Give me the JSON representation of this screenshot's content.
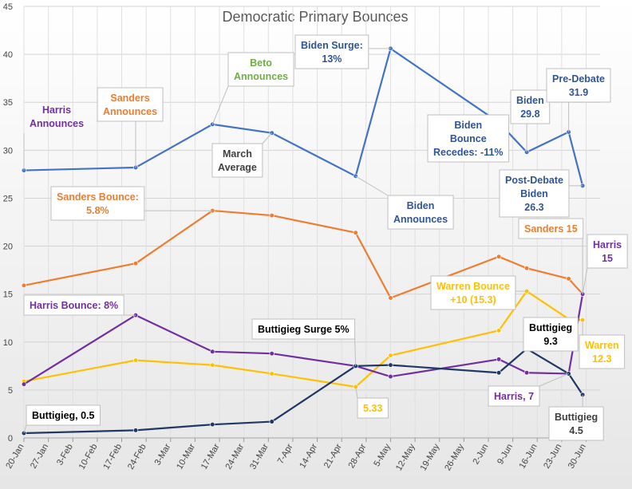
{
  "chart_data": {
    "type": "line",
    "title": "Democratic Primary Bounces",
    "xlabel": "",
    "ylabel": "",
    "ylim": [
      0,
      45
    ],
    "yticks": [
      0,
      5,
      10,
      15,
      20,
      25,
      30,
      35,
      40,
      45
    ],
    "grid": true,
    "x_ticks": [
      "20-Jan",
      "27-Jan",
      "3-Feb",
      "10-Feb",
      "17-Feb",
      "24-Feb",
      "3-Mar",
      "10-Mar",
      "17-Mar",
      "24-Mar",
      "31-Mar",
      "7-Apr",
      "14-Apr",
      "21-Apr",
      "28-Apr",
      "5-May",
      "12-May",
      "19-May",
      "26-May",
      "2-Jun",
      "9-Jun",
      "16-Jun",
      "23-Jun",
      "30-Jun"
    ],
    "series": [
      {
        "name": "Biden",
        "color": "#4472C4",
        "points": [
          {
            "x": "20-Jan",
            "y": 27.9
          },
          {
            "x": "21-Feb",
            "y": 28.2
          },
          {
            "x": "15-Mar",
            "y": 32.7
          },
          {
            "x": "1-Apr",
            "y": 31.8
          },
          {
            "x": "25-Apr",
            "y": 27.3
          },
          {
            "x": "5-May",
            "y": 40.6
          },
          {
            "x": "5-Jun",
            "y": 32.9
          },
          {
            "x": "13-Jun",
            "y": 29.8
          },
          {
            "x": "25-Jun",
            "y": 31.9
          },
          {
            "x": "29-Jun",
            "y": 26.3
          }
        ]
      },
      {
        "name": "Sanders",
        "color": "#ED7D31",
        "points": [
          {
            "x": "20-Jan",
            "y": 15.9
          },
          {
            "x": "21-Feb",
            "y": 18.2
          },
          {
            "x": "15-Mar",
            "y": 23.7
          },
          {
            "x": "1-Apr",
            "y": 23.2
          },
          {
            "x": "25-Apr",
            "y": 21.4
          },
          {
            "x": "5-May",
            "y": 14.6
          },
          {
            "x": "5-Jun",
            "y": 18.9
          },
          {
            "x": "13-Jun",
            "y": 17.7
          },
          {
            "x": "25-Jun",
            "y": 16.6
          },
          {
            "x": "29-Jun",
            "y": 15
          }
        ]
      },
      {
        "name": "Warren",
        "color": "#FFC000",
        "points": [
          {
            "x": "20-Jan",
            "y": 5.9
          },
          {
            "x": "21-Feb",
            "y": 8.1
          },
          {
            "x": "15-Mar",
            "y": 7.6
          },
          {
            "x": "1-Apr",
            "y": 6.7
          },
          {
            "x": "25-Apr",
            "y": 5.33
          },
          {
            "x": "5-May",
            "y": 8.6
          },
          {
            "x": "5-Jun",
            "y": 11.2
          },
          {
            "x": "13-Jun",
            "y": 15.3
          },
          {
            "x": "25-Jun",
            "y": 12.4
          },
          {
            "x": "29-Jun",
            "y": 12.3
          }
        ]
      },
      {
        "name": "Harris",
        "color": "#7030A0",
        "points": [
          {
            "x": "20-Jan",
            "y": 5.6
          },
          {
            "x": "21-Feb",
            "y": 12.8
          },
          {
            "x": "15-Mar",
            "y": 9.0
          },
          {
            "x": "1-Apr",
            "y": 8.8
          },
          {
            "x": "25-Apr",
            "y": 7.5
          },
          {
            "x": "5-May",
            "y": 6.4
          },
          {
            "x": "5-Jun",
            "y": 8.2
          },
          {
            "x": "13-Jun",
            "y": 6.8
          },
          {
            "x": "25-Jun",
            "y": 6.7
          },
          {
            "x": "29-Jun",
            "y": 15
          }
        ]
      },
      {
        "name": "Buttigieg",
        "color": "#1F3864",
        "points": [
          {
            "x": "20-Jan",
            "y": 0.5
          },
          {
            "x": "21-Feb",
            "y": 0.8
          },
          {
            "x": "15-Mar",
            "y": 1.4
          },
          {
            "x": "1-Apr",
            "y": 1.7
          },
          {
            "x": "25-Apr",
            "y": 7.5
          },
          {
            "x": "5-May",
            "y": 7.6
          },
          {
            "x": "5-Jun",
            "y": 6.8
          },
          {
            "x": "13-Jun",
            "y": 9.3
          },
          {
            "x": "25-Jun",
            "y": 6.7
          },
          {
            "x": "29-Jun",
            "y": 4.5
          }
        ]
      }
    ],
    "annotations": [
      {
        "lines": [
          "Harris",
          "Announces"
        ],
        "color": "#7030A0",
        "box": false,
        "anchor": {
          "s": 0,
          "i": 0
        }
      },
      {
        "lines": [
          "Sanders",
          "Announces"
        ],
        "color": "#ED7D31",
        "box": true,
        "anchor": {
          "s": 0,
          "i": 1
        }
      },
      {
        "lines": [
          "Beto",
          "Announces"
        ],
        "color": "#70AD47",
        "box": true,
        "anchor": {
          "s": 0,
          "i": 2
        }
      },
      {
        "lines": [
          "March",
          "Average"
        ],
        "color": "#404040",
        "box": true,
        "anchor": {
          "s": 0,
          "i": 3
        }
      },
      {
        "lines": [
          "Biden Surge:",
          "13%"
        ],
        "color": "#2F5597",
        "box": true,
        "anchor": {
          "s": 0,
          "i": 5
        }
      },
      {
        "lines": [
          "Biden",
          "Announces"
        ],
        "color": "#2F5597",
        "box": true,
        "anchor": {
          "s": 0,
          "i": 4
        }
      },
      {
        "lines": [
          "Biden",
          "Bounce",
          "Recedes: -11%"
        ],
        "color": "#2F5597",
        "box": true,
        "anchor": {
          "s": 0,
          "i": 6
        }
      },
      {
        "lines": [
          "Biden",
          "29.8"
        ],
        "color": "#2F5597",
        "box": true,
        "anchor": {
          "s": 0,
          "i": 7
        }
      },
      {
        "lines": [
          "Pre-Debate",
          "31.9"
        ],
        "color": "#2F5597",
        "box": true,
        "anchor": {
          "s": 0,
          "i": 8
        }
      },
      {
        "lines": [
          "Post-Debate",
          "Biden",
          "26.3"
        ],
        "color": "#2F5597",
        "box": true,
        "anchor": {
          "s": 0,
          "i": 9
        }
      },
      {
        "lines": [
          "Sanders Bounce:",
          "5.8%"
        ],
        "color": "#ED7D31",
        "box": true,
        "anchor": {
          "s": 1,
          "i": 2
        }
      },
      {
        "lines": [
          "Sanders 15"
        ],
        "color": "#ED7D31",
        "box": true,
        "anchor": {
          "s": 1,
          "i": 9
        }
      },
      {
        "lines": [
          "Harris",
          "15"
        ],
        "color": "#7030A0",
        "box": true,
        "anchor": {
          "s": 3,
          "i": 9
        }
      },
      {
        "lines": [
          "Harris Bounce: 8%"
        ],
        "color": "#7030A0",
        "box": true,
        "anchor": {
          "s": 3,
          "i": 1
        }
      },
      {
        "lines": [
          "Warren Bounce",
          "+10 (15.3)"
        ],
        "color": "#FFC000",
        "box": true,
        "anchor": {
          "s": 2,
          "i": 7
        }
      },
      {
        "lines": [
          "Warren",
          "12.3"
        ],
        "color": "#FFC000",
        "box": true,
        "anchor": {
          "s": 2,
          "i": 9
        }
      },
      {
        "lines": [
          "5.33"
        ],
        "color": "#FFC000",
        "box": true,
        "anchor": {
          "s": 2,
          "i": 4
        }
      },
      {
        "lines": [
          "Buttigieg Surge 5%"
        ],
        "color": "#000000",
        "box": true,
        "anchor": {
          "s": 4,
          "i": 4
        }
      },
      {
        "lines": [
          "Buttigieg",
          "9.3"
        ],
        "color": "#000000",
        "box": true,
        "anchor": {
          "s": 4,
          "i": 7
        }
      },
      {
        "lines": [
          "Harris, 7"
        ],
        "color": "#7030A0",
        "box": true,
        "anchor": {
          "s": 3,
          "i": 8
        }
      },
      {
        "lines": [
          "Buttigieg",
          "4.5"
        ],
        "color": "#404040",
        "box": true,
        "anchor": {
          "s": 4,
          "i": 9
        }
      },
      {
        "lines": [
          "Buttigieg, 0.5"
        ],
        "color": "#000000",
        "box": true,
        "anchor": {
          "s": 4,
          "i": 0
        }
      }
    ]
  }
}
